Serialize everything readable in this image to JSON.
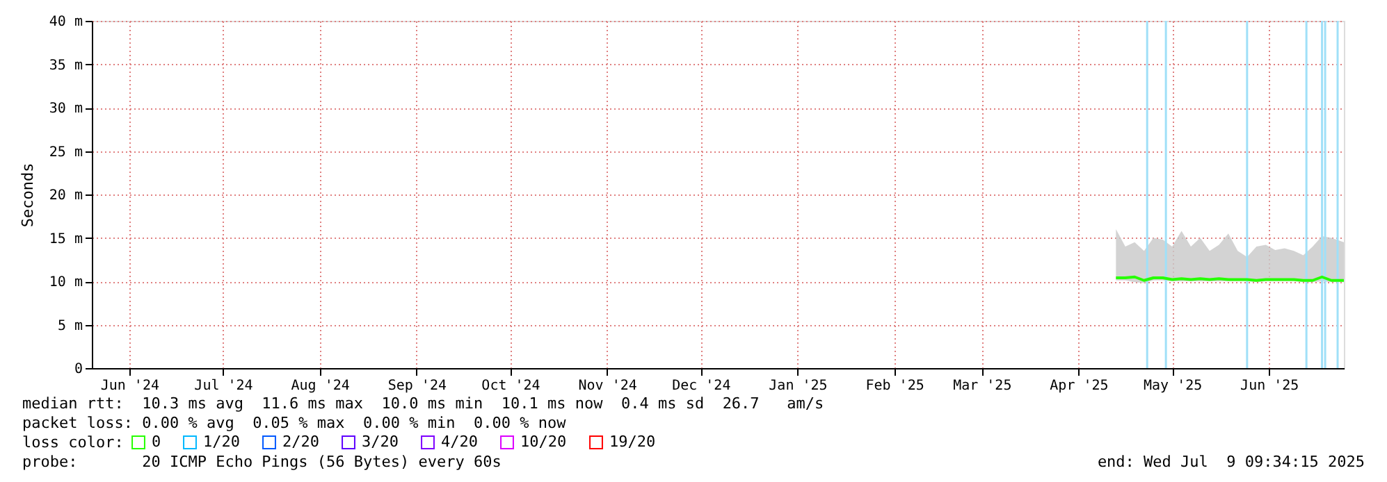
{
  "chart_data": {
    "type": "line",
    "ylabel": "Seconds",
    "x": [
      "2025-04-27",
      "2025-04-30",
      "2025-05-03",
      "2025-05-06",
      "2025-05-09",
      "2025-05-12",
      "2025-05-15",
      "2025-05-18",
      "2025-05-21",
      "2025-05-24",
      "2025-05-27",
      "2025-05-30",
      "2025-06-02",
      "2025-06-05",
      "2025-06-08",
      "2025-06-11",
      "2025-06-14",
      "2025-06-17",
      "2025-06-20",
      "2025-06-23",
      "2025-06-26",
      "2025-06-29",
      "2025-07-02",
      "2025-07-05",
      "2025-07-09"
    ],
    "series": [
      {
        "name": "0",
        "color": "#26ff00",
        "values": [
          10.4,
          10.4,
          10.5,
          10.1,
          10.4,
          10.4,
          10.2,
          10.3,
          10.2,
          10.3,
          10.2,
          10.3,
          10.2,
          10.2,
          10.2,
          10.1,
          10.2,
          10.2,
          10.2,
          10.2,
          10.1,
          10.1,
          10.5,
          10.1,
          10.1
        ],
        "lower": [
          10.1,
          10.1,
          9.9,
          9.8,
          10.1,
          10.1,
          10.0,
          10.0,
          10.0,
          10.0,
          10.0,
          10.0,
          10.0,
          10.0,
          10.0,
          9.9,
          10.0,
          10.0,
          10.0,
          10.0,
          9.9,
          9.9,
          10.0,
          9.9,
          9.9
        ],
        "upper": [
          16.0,
          14.0,
          14.5,
          13.5,
          15.0,
          14.8,
          14.0,
          15.8,
          14.0,
          15.0,
          13.5,
          14.2,
          15.5,
          13.5,
          12.8,
          14.0,
          14.2,
          13.6,
          13.8,
          13.5,
          13.0,
          14.0,
          15.2,
          15.0,
          14.5
        ]
      },
      {
        "name": "1/20",
        "color": "#00b8ff",
        "values": [
          null,
          null,
          null,
          null,
          null,
          null,
          null,
          null,
          null,
          null,
          null,
          null,
          null,
          null,
          null,
          null,
          null,
          null,
          null,
          null,
          null,
          null,
          null,
          null,
          null
        ]
      },
      {
        "name": "2/20",
        "color": "#0059ff",
        "values": [
          null,
          null,
          null,
          null,
          null,
          null,
          null,
          null,
          null,
          null,
          null,
          null,
          null,
          null,
          null,
          null,
          null,
          null,
          null,
          null,
          null,
          null,
          null,
          null,
          null
        ]
      },
      {
        "name": "3/20",
        "color": "#5e00ff",
        "values": [
          null,
          null,
          null,
          null,
          null,
          null,
          null,
          null,
          null,
          null,
          null,
          null,
          null,
          null,
          null,
          null,
          null,
          null,
          null,
          null,
          null,
          null,
          null,
          null,
          null
        ]
      },
      {
        "name": "4/20",
        "color": "#7e00ff",
        "values": [
          null,
          null,
          null,
          null,
          null,
          null,
          null,
          null,
          null,
          null,
          null,
          null,
          null,
          null,
          null,
          null,
          null,
          null,
          null,
          null,
          null,
          null,
          null,
          null,
          null
        ]
      },
      {
        "name": "10/20",
        "color": "#dd00ff",
        "values": [
          null,
          null,
          null,
          null,
          null,
          null,
          null,
          null,
          null,
          null,
          null,
          null,
          null,
          null,
          null,
          null,
          null,
          null,
          null,
          null,
          null,
          null,
          null,
          null,
          null
        ]
      },
      {
        "name": "19/20",
        "color": "#ff0000",
        "values": [
          null,
          null,
          null,
          null,
          null,
          null,
          null,
          null,
          null,
          null,
          null,
          null,
          null,
          null,
          null,
          null,
          null,
          null,
          null,
          null,
          null,
          null,
          null,
          null,
          null
        ]
      }
    ],
    "legend_title": "loss color:",
    "legend": "bottom left",
    "xlim": [
      "2024-06-03",
      "2025-07-09"
    ],
    "xticks": [
      {
        "value": "2024-06-15",
        "label": "Jun '24"
      },
      {
        "value": "2024-07-15",
        "label": "Jul '24"
      },
      {
        "value": "2024-08-15",
        "label": "Aug '24"
      },
      {
        "value": "2024-09-15",
        "label": "Sep '24"
      },
      {
        "value": "2024-10-15",
        "label": "Oct '24"
      },
      {
        "value": "2024-11-15",
        "label": "Nov '24"
      },
      {
        "value": "2024-12-15",
        "label": "Dec '24"
      },
      {
        "value": "2025-01-15",
        "label": "Jan '25"
      },
      {
        "value": "2025-02-15",
        "label": "Feb '25"
      },
      {
        "value": "2025-03-15",
        "label": "Mar '25"
      },
      {
        "value": "2025-04-15",
        "label": "Apr '25"
      },
      {
        "value": "2025-05-15",
        "label": "May '25"
      },
      {
        "value": "2025-06-15",
        "label": "Jun '25"
      }
    ],
    "ylim": [
      0,
      40
    ],
    "yticks": [
      0,
      {
        "value": 5,
        "label": "5 m"
      },
      {
        "value": 10,
        "label": "10 m"
      },
      {
        "value": 15,
        "label": "15 m"
      },
      {
        "value": 20,
        "label": "20 m"
      },
      {
        "value": 25,
        "label": "25 m"
      },
      {
        "value": 30,
        "label": "30 m"
      },
      {
        "value": 35,
        "label": "35 m"
      },
      {
        "value": 40,
        "label": "40 m"
      }
    ],
    "grid": true,
    "ref_lines": [
      {
        "axis": "x",
        "value": "2025-05-07",
        "label": null,
        "color": "#a0e0f8"
      },
      {
        "axis": "x",
        "value": "2025-05-13",
        "label": null,
        "color": "#a0e0f8"
      },
      {
        "axis": "x",
        "value": "2025-06-08",
        "label": null,
        "color": "#a0e0f8"
      },
      {
        "axis": "x",
        "value": "2025-06-27",
        "label": null,
        "color": "#a0e0f8"
      },
      {
        "axis": "x",
        "value": "2025-07-02",
        "label": null,
        "color": "#a0e0f8"
      },
      {
        "axis": "x",
        "value": "2025-07-03",
        "label": null,
        "color": "#a0e0f8"
      },
      {
        "axis": "x",
        "value": "2025-07-07",
        "label": null,
        "color": "#a0e0f8"
      }
    ],
    "annotations": [
      "median rtt:  10.3 ms avg  11.6 ms max  10.0 ms min  10.1 ms now  0.4 ms sd  26.7   am/s",
      "packet loss: 0.00 % avg  0.05 % max  0.00 % min  0.00 % now",
      "probe:       20 ICMP Echo Pings (56 Bytes) every 60s",
      "end: Wed Jul  9 09:34:15 2025"
    ]
  }
}
